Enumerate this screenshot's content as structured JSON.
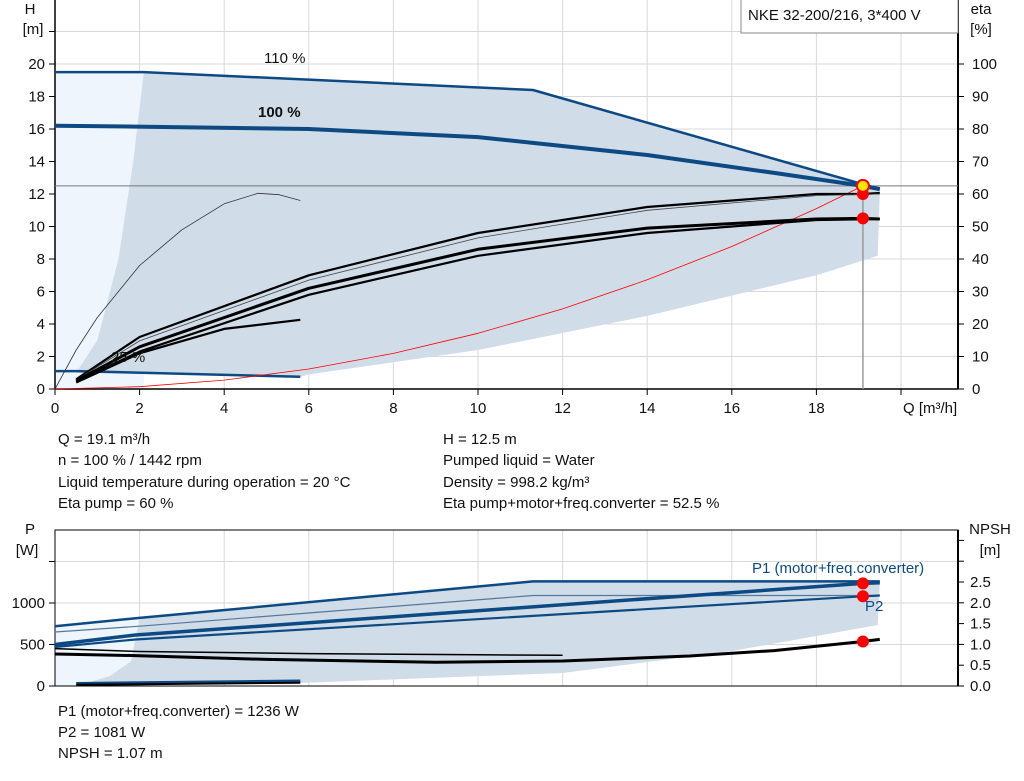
{
  "chart_data": [
    {
      "type": "line",
      "title": "NKE 32-200/216, 3*400 V",
      "xlabel": "Q [m³/h]",
      "ylabel_left": [
        "H",
        "[m]"
      ],
      "ylabel_right": [
        "eta",
        "[%]"
      ],
      "xlim": [
        0,
        21.3
      ],
      "ylim_left": [
        0,
        24
      ],
      "ylim_right": [
        0,
        120
      ],
      "x_ticks": [
        "0",
        "2",
        "4",
        "6",
        "8",
        "10",
        "12",
        "14",
        "16",
        "18"
      ],
      "y_ticks_left": [
        "0",
        "2",
        "4",
        "6",
        "8",
        "10",
        "12",
        "14",
        "16",
        "18",
        "20"
      ],
      "y_ticks_right": [
        "0",
        "10",
        "20",
        "30",
        "40",
        "50",
        "60",
        "70",
        "80",
        "90",
        "100"
      ],
      "grid": true,
      "curve_labels": [
        "110 %",
        "100 %",
        "25 %"
      ],
      "series": [
        {
          "axis": "H",
          "style": "head-110",
          "x": [
            0,
            2.1,
            11.3,
            19.5
          ],
          "y": [
            19.5,
            19.5,
            18.4,
            12.3
          ]
        },
        {
          "axis": "H",
          "style": "head-100",
          "x": [
            0,
            1.9,
            6,
            10,
            14,
            17,
            19.1,
            19.5
          ],
          "y": [
            16.2,
            16.15,
            16.0,
            15.5,
            14.4,
            13.3,
            12.5,
            12.3
          ]
        },
        {
          "axis": "H",
          "style": "head-25",
          "x": [
            0,
            0.5,
            5.8
          ],
          "y": [
            1.1,
            1.1,
            0.75
          ]
        },
        {
          "axis": "H",
          "style": "system-curve",
          "x": [
            0,
            2,
            4,
            6,
            8,
            10,
            12,
            14,
            16,
            18,
            19.1
          ],
          "y": [
            0,
            0.14,
            0.55,
            1.23,
            2.19,
            3.43,
            4.93,
            6.72,
            8.77,
            11.1,
            12.5
          ]
        },
        {
          "axis": "eta",
          "style": "eta-thin-arc",
          "x": [
            0,
            0.5,
            1,
            2,
            3,
            4,
            4.8,
            5.3,
            5.8
          ],
          "y": [
            0,
            12,
            22,
            38,
            49,
            57,
            60.2,
            59.8,
            58
          ]
        },
        {
          "axis": "eta",
          "style": "eta-pump",
          "x": [
            0.5,
            2,
            6,
            10,
            14,
            18,
            19.1,
            19.5
          ],
          "y": [
            3,
            16,
            35,
            48,
            56,
            60,
            60,
            60.3
          ]
        },
        {
          "axis": "eta",
          "style": "eta-pump-thin",
          "x": [
            0.5,
            2,
            6,
            10,
            14,
            18,
            19.5
          ],
          "y": [
            2.8,
            14.8,
            33.5,
            46.5,
            55,
            59.5,
            60
          ]
        },
        {
          "axis": "eta",
          "style": "eta-total",
          "x": [
            0.5,
            2,
            6,
            10,
            14,
            18,
            19.1,
            19.5
          ],
          "y": [
            2.5,
            13,
            31,
            43,
            49.5,
            52.3,
            52.5,
            52.3
          ]
        },
        {
          "axis": "eta",
          "style": "eta-total-2",
          "x": [
            0.5,
            2,
            6,
            10,
            14,
            18,
            19.5
          ],
          "y": [
            2.2,
            11.5,
            29,
            41,
            48,
            52,
            52.3
          ]
        },
        {
          "axis": "eta",
          "style": "eta-25",
          "x": [
            0.5,
            2,
            4,
            5.8
          ],
          "y": [
            2,
            11,
            18.5,
            21.3
          ]
        }
      ],
      "operating_point": {
        "Q": 19.1,
        "H": 12.5,
        "eta_pump": 60,
        "eta_total": 52.5
      }
    },
    {
      "type": "line",
      "xlim": [
        0,
        21.3
      ],
      "ylabel_left": [
        "P",
        "[W]"
      ],
      "ylabel_right": [
        "NPSH",
        "[m]"
      ],
      "ylim_left": [
        0,
        1900
      ],
      "ylim_right": [
        0,
        3.75
      ],
      "y_ticks_left": [
        "0",
        "500",
        "1000"
      ],
      "y_ticks_right": [
        "0.0",
        "0.5",
        "1.0",
        "1.5",
        "2.0",
        "2.5"
      ],
      "grid": true,
      "curve_labels": [
        "P1 (motor+freq.converter)",
        "P2"
      ],
      "series": [
        {
          "axis": "P",
          "style": "p1-110",
          "x": [
            0,
            2,
            11.3,
            19.5
          ],
          "y": [
            720,
            820,
            1260,
            1260
          ]
        },
        {
          "axis": "P",
          "style": "p2-110",
          "x": [
            0,
            2,
            11.3,
            19.5
          ],
          "y": [
            650,
            720,
            1090,
            1090
          ]
        },
        {
          "axis": "P",
          "style": "p1-100",
          "x": [
            0,
            1.9,
            19.1,
            19.5
          ],
          "y": [
            500,
            615,
            1236,
            1245
          ]
        },
        {
          "axis": "P",
          "style": "p2-100",
          "x": [
            0,
            1.9,
            19.1,
            19.5
          ],
          "y": [
            470,
            560,
            1081,
            1090
          ]
        },
        {
          "axis": "P",
          "style": "p-25",
          "x": [
            0.5,
            5.8
          ],
          "y": [
            30,
            60
          ]
        },
        {
          "axis": "NPSH",
          "style": "npsh-110",
          "x": [
            0,
            2,
            6,
            10,
            12
          ],
          "y": [
            0.9,
            0.83,
            0.78,
            0.75,
            0.74
          ]
        },
        {
          "axis": "NPSH",
          "style": "npsh-100",
          "x": [
            0,
            1.9,
            5,
            9,
            12,
            15,
            17,
            19.1,
            19.5
          ],
          "y": [
            0.77,
            0.73,
            0.64,
            0.57,
            0.6,
            0.72,
            0.85,
            1.07,
            1.12
          ]
        }
      ],
      "operating_point": {
        "Q": 19.1,
        "P1": 1236,
        "P2": 1081,
        "NPSH": 1.07
      }
    }
  ],
  "results": {
    "left": [
      "Q = 19.1 m³/h",
      "n = 100 % / 1442 rpm",
      "Liquid temperature during operation = 20 °C",
      "Eta pump = 60 %"
    ],
    "right": [
      "H = 12.5 m",
      "Pumped liquid = Water",
      "Density = 998.2 kg/m³",
      "Eta pump+motor+freq.converter = 52.5 %"
    ],
    "bottom": [
      "P1 (motor+freq.converter) = 1236 W",
      "P2 = 1081 W",
      "NPSH = 1.07 m"
    ]
  },
  "colors": {
    "curve_blue": "#0d4a84",
    "area": "#d0dce7",
    "area_light": "#eef5fc",
    "marker": "#ff0000",
    "operating_marker": "#ffe600",
    "system": "#ff0000"
  }
}
